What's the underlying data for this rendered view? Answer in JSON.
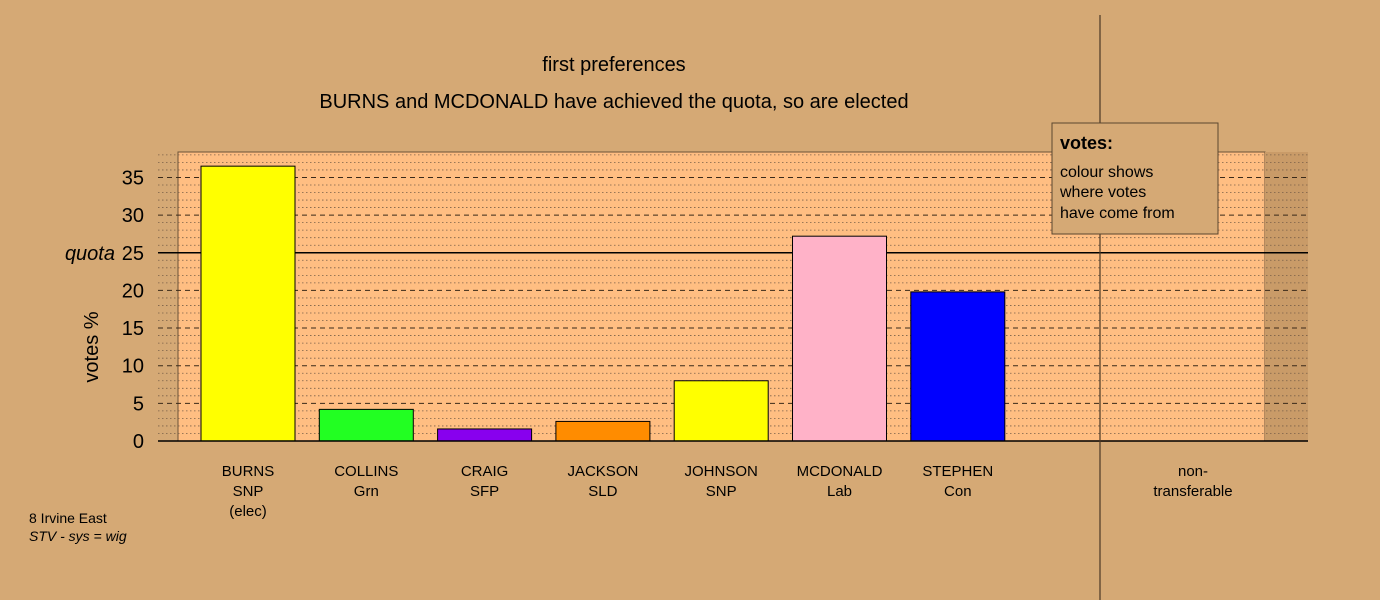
{
  "chart_data": {
    "type": "bar",
    "title": "first preferences",
    "subtitle": "BURNS and MCDONALD have achieved the quota, so are elected",
    "ylabel": "votes %",
    "ylim": [
      0,
      38
    ],
    "yticks": [
      0,
      5,
      10,
      15,
      20,
      25,
      30,
      35
    ],
    "quota": 25,
    "quota_label": "quota",
    "categories": [
      {
        "name": "BURNS",
        "party": "SNP",
        "note": "(elec)",
        "value": 36.5,
        "color": "#ffff00"
      },
      {
        "name": "COLLINS",
        "party": "Grn",
        "note": "",
        "value": 4.2,
        "color": "#22ff22"
      },
      {
        "name": "CRAIG",
        "party": "SFP",
        "note": "",
        "value": 1.6,
        "color": "#8800ee"
      },
      {
        "name": "JACKSON",
        "party": "SLD",
        "note": "",
        "value": 2.6,
        "color": "#ff8c00"
      },
      {
        "name": "JOHNSON",
        "party": "SNP",
        "note": "",
        "value": 8.0,
        "color": "#ffff00"
      },
      {
        "name": "MCDONALD",
        "party": "Lab",
        "note": "",
        "value": 27.2,
        "color": "#ffb2c8"
      },
      {
        "name": "STEPHEN",
        "party": "Con",
        "note": "",
        "value": 19.8,
        "color": "#0000ff"
      }
    ],
    "nontransferable": {
      "line1": "non-",
      "line2": "transferable",
      "value": 0
    },
    "legend": {
      "title": "votes:",
      "lines": [
        "colour shows",
        "where votes",
        "have come from"
      ],
      "position": "top-right"
    },
    "grid": true
  },
  "footer": {
    "ward": "8 Irvine East",
    "system": "STV - sys = wig"
  },
  "colors": {
    "background": "#d5a975",
    "plot_background": "#ffbe82",
    "quota_line": "#000000"
  }
}
